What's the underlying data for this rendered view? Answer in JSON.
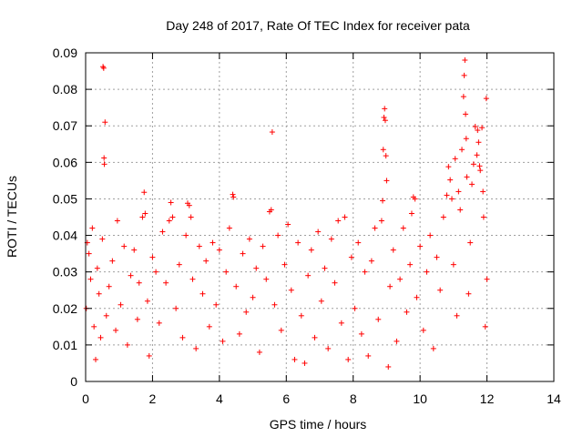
{
  "chart_data": {
    "type": "scatter",
    "title": "Day 248 of 2017, Rate Of TEC Index for receiver pata",
    "xlabel": "GPS time / hours",
    "ylabel": "ROTI / TECUs",
    "xlim": [
      0,
      14
    ],
    "ylim": [
      0,
      0.09
    ],
    "xticks": [
      "0",
      "2",
      "4",
      "6",
      "8",
      "10",
      "12",
      "14"
    ],
    "yticks": [
      "0",
      "0.01",
      "0.02",
      "0.03",
      "0.04",
      "0.05",
      "0.06",
      "0.07",
      "0.08",
      "0.09"
    ],
    "grid": true,
    "marker": "+",
    "color": "#ff0000",
    "series": [
      {
        "points": [
          [
            0.02,
            0.02
          ],
          [
            0.05,
            0.038
          ],
          [
            0.1,
            0.035
          ],
          [
            0.15,
            0.028
          ],
          [
            0.2,
            0.042
          ],
          [
            0.25,
            0.015
          ],
          [
            0.3,
            0.006
          ],
          [
            0.35,
            0.031
          ],
          [
            0.4,
            0.024
          ],
          [
            0.45,
            0.012
          ],
          [
            0.5,
            0.039
          ],
          [
            0.52,
            0.0862
          ],
          [
            0.54,
            0.0858
          ],
          [
            0.55,
            0.0612
          ],
          [
            0.56,
            0.0595
          ],
          [
            0.58,
            0.071
          ],
          [
            0.62,
            0.018
          ],
          [
            0.7,
            0.026
          ],
          [
            0.8,
            0.033
          ],
          [
            0.9,
            0.014
          ],
          [
            0.95,
            0.044
          ],
          [
            1.05,
            0.021
          ],
          [
            1.15,
            0.037
          ],
          [
            1.25,
            0.01
          ],
          [
            1.35,
            0.029
          ],
          [
            1.45,
            0.036
          ],
          [
            1.55,
            0.017
          ],
          [
            1.6,
            0.027
          ],
          [
            1.7,
            0.045
          ],
          [
            1.75,
            0.0518
          ],
          [
            1.78,
            0.046
          ],
          [
            1.85,
            0.022
          ],
          [
            1.9,
            0.007
          ],
          [
            2.0,
            0.034
          ],
          [
            2.1,
            0.03
          ],
          [
            2.2,
            0.016
          ],
          [
            2.3,
            0.041
          ],
          [
            2.4,
            0.027
          ],
          [
            2.5,
            0.044
          ],
          [
            2.55,
            0.049
          ],
          [
            2.6,
            0.045
          ],
          [
            2.7,
            0.02
          ],
          [
            2.8,
            0.032
          ],
          [
            2.9,
            0.012
          ],
          [
            3.0,
            0.04
          ],
          [
            3.05,
            0.0488
          ],
          [
            3.1,
            0.0482
          ],
          [
            3.15,
            0.045
          ],
          [
            3.2,
            0.028
          ],
          [
            3.3,
            0.009
          ],
          [
            3.4,
            0.037
          ],
          [
            3.5,
            0.024
          ],
          [
            3.6,
            0.033
          ],
          [
            3.7,
            0.015
          ],
          [
            3.8,
            0.038
          ],
          [
            3.9,
            0.021
          ],
          [
            4.0,
            0.036
          ],
          [
            4.1,
            0.011
          ],
          [
            4.2,
            0.03
          ],
          [
            4.3,
            0.042
          ],
          [
            4.4,
            0.0512
          ],
          [
            4.42,
            0.0505
          ],
          [
            4.5,
            0.026
          ],
          [
            4.6,
            0.013
          ],
          [
            4.7,
            0.035
          ],
          [
            4.8,
            0.019
          ],
          [
            4.9,
            0.039
          ],
          [
            5.0,
            0.023
          ],
          [
            5.1,
            0.031
          ],
          [
            5.2,
            0.008
          ],
          [
            5.3,
            0.037
          ],
          [
            5.4,
            0.028
          ],
          [
            5.5,
            0.0465
          ],
          [
            5.55,
            0.047
          ],
          [
            5.58,
            0.0683
          ],
          [
            5.65,
            0.021
          ],
          [
            5.75,
            0.04
          ],
          [
            5.85,
            0.014
          ],
          [
            5.95,
            0.032
          ],
          [
            6.05,
            0.043
          ],
          [
            6.15,
            0.025
          ],
          [
            6.25,
            0.006
          ],
          [
            6.35,
            0.038
          ],
          [
            6.45,
            0.018
          ],
          [
            6.55,
            0.005
          ],
          [
            6.65,
            0.029
          ],
          [
            6.75,
            0.036
          ],
          [
            6.85,
            0.012
          ],
          [
            6.95,
            0.041
          ],
          [
            7.05,
            0.022
          ],
          [
            7.15,
            0.031
          ],
          [
            7.25,
            0.009
          ],
          [
            7.35,
            0.039
          ],
          [
            7.45,
            0.027
          ],
          [
            7.55,
            0.044
          ],
          [
            7.65,
            0.016
          ],
          [
            7.75,
            0.045
          ],
          [
            7.85,
            0.006
          ],
          [
            7.95,
            0.034
          ],
          [
            8.05,
            0.02
          ],
          [
            8.15,
            0.038
          ],
          [
            8.25,
            0.013
          ],
          [
            8.35,
            0.03
          ],
          [
            8.45,
            0.007
          ],
          [
            8.55,
            0.033
          ],
          [
            8.65,
            0.042
          ],
          [
            8.75,
            0.017
          ],
          [
            8.85,
            0.044
          ],
          [
            8.88,
            0.0495
          ],
          [
            8.9,
            0.0635
          ],
          [
            8.92,
            0.0723
          ],
          [
            8.94,
            0.0747
          ],
          [
            8.96,
            0.0715
          ],
          [
            8.98,
            0.0618
          ],
          [
            9.0,
            0.055
          ],
          [
            9.05,
            0.004
          ],
          [
            9.1,
            0.026
          ],
          [
            9.2,
            0.036
          ],
          [
            9.3,
            0.011
          ],
          [
            9.4,
            0.028
          ],
          [
            9.5,
            0.042
          ],
          [
            9.6,
            0.019
          ],
          [
            9.7,
            0.032
          ],
          [
            9.75,
            0.046
          ],
          [
            9.8,
            0.0505
          ],
          [
            9.85,
            0.05
          ],
          [
            9.9,
            0.023
          ],
          [
            10.0,
            0.037
          ],
          [
            10.1,
            0.014
          ],
          [
            10.2,
            0.03
          ],
          [
            10.3,
            0.04
          ],
          [
            10.4,
            0.009
          ],
          [
            10.5,
            0.034
          ],
          [
            10.6,
            0.025
          ],
          [
            10.7,
            0.045
          ],
          [
            10.8,
            0.051
          ],
          [
            10.85,
            0.0588
          ],
          [
            10.9,
            0.0552
          ],
          [
            10.95,
            0.05
          ],
          [
            11.0,
            0.032
          ],
          [
            11.05,
            0.061
          ],
          [
            11.1,
            0.018
          ],
          [
            11.15,
            0.052
          ],
          [
            11.2,
            0.047
          ],
          [
            11.25,
            0.0635
          ],
          [
            11.3,
            0.078
          ],
          [
            11.32,
            0.0838
          ],
          [
            11.34,
            0.088
          ],
          [
            11.36,
            0.0732
          ],
          [
            11.38,
            0.0665
          ],
          [
            11.4,
            0.056
          ],
          [
            11.45,
            0.024
          ],
          [
            11.5,
            0.038
          ],
          [
            11.55,
            0.054
          ],
          [
            11.6,
            0.0595
          ],
          [
            11.65,
            0.0698
          ],
          [
            11.7,
            0.062
          ],
          [
            11.72,
            0.0688
          ],
          [
            11.75,
            0.0655
          ],
          [
            11.78,
            0.059
          ],
          [
            11.8,
            0.0578
          ],
          [
            11.85,
            0.0695
          ],
          [
            11.88,
            0.052
          ],
          [
            11.9,
            0.045
          ],
          [
            11.95,
            0.015
          ],
          [
            11.98,
            0.0775
          ],
          [
            12.0,
            0.028
          ]
        ]
      }
    ]
  }
}
